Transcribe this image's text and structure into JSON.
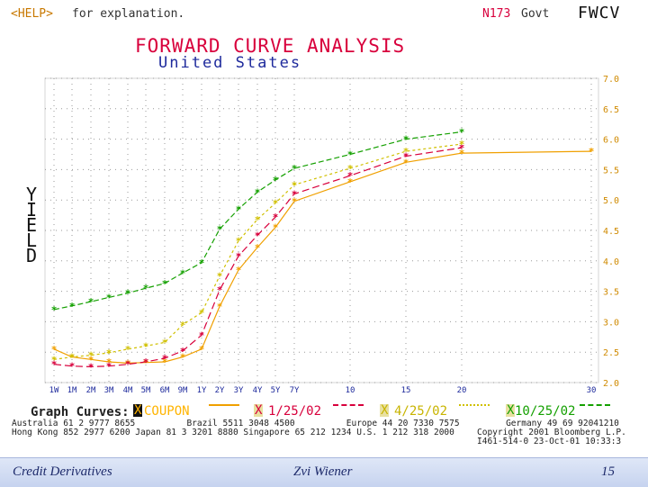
{
  "header": {
    "help_key": "<HELP>",
    "help_text": "for explanation.",
    "page_code": "N173",
    "section": "Govt",
    "function": "FWCV"
  },
  "title": "FORWARD CURVE ANALYSIS",
  "subtitle": "United States",
  "ylabel_letters": [
    "Y",
    "I",
    "E",
    "L",
    "D"
  ],
  "graph_curves_label": "Graph Curves:",
  "legend": [
    {
      "mark": "X",
      "label": "COUPON",
      "color": "#ffb400",
      "selected": true
    },
    {
      "mark": "X",
      "label": "1/25/02",
      "color": "#d8003c",
      "selected": false
    },
    {
      "mark": "X",
      "label": "4/25/02",
      "color": "#c8b400",
      "selected": false
    },
    {
      "mark": "X",
      "label": "10/25/02",
      "color": "#14a000",
      "selected": false
    }
  ],
  "contacts": {
    "row1": "Australia 61 2 9777 8655          Brazil 5511 3048 4500          Europe 44 20 7330 7575         Germany 49 69 92041210",
    "row2": "Hong Kong 852 2977 6200 Japan 81 3 3201 8880 Singapore 65 212 1234 U.S. 1 212 318 2000",
    "copyright": "Copyright 2001 Bloomberg L.P.",
    "stamp": "I461-514-0 23-Oct-01 10:33:3"
  },
  "footer": {
    "left": "Credit Derivatives",
    "center": "Zvi Wiener",
    "page": "15"
  },
  "chart_data": {
    "type": "line",
    "title": "FORWARD CURVE ANALYSIS",
    "subtitle": "United States",
    "ylabel": "YIELD",
    "xlabel": "",
    "ylim": [
      2.0,
      7.0
    ],
    "y_ticks": [
      "2.0",
      "2.5",
      "3.0",
      "3.5",
      "4.0",
      "4.5",
      "5.0",
      "5.5",
      "6.0",
      "6.5",
      "7.0"
    ],
    "x_ticks": [
      "1W",
      "1M",
      "2M",
      "3M",
      "4M",
      "5M",
      "6M",
      "9M",
      "1Y",
      "2Y",
      "3Y",
      "4Y",
      "5Y",
      "7Y",
      "10",
      "15",
      "20",
      "30"
    ],
    "grid": true,
    "legend_position": "bottom",
    "series": [
      {
        "name": "COUPON",
        "color": "#f0a000",
        "dash": "",
        "values": [
          2.55,
          2.42,
          2.38,
          2.34,
          2.32,
          2.33,
          2.34,
          2.42,
          2.55,
          3.25,
          3.85,
          4.22,
          4.55,
          4.98,
          5.3,
          5.62,
          5.77,
          5.8
        ]
      },
      {
        "name": "1/25/02",
        "color": "#d8003c",
        "dash": "8,4",
        "values": [
          2.3,
          2.27,
          2.26,
          2.27,
          2.3,
          2.34,
          2.4,
          2.52,
          2.78,
          3.52,
          4.08,
          4.42,
          4.72,
          5.1,
          5.4,
          5.72,
          5.86,
          null
        ]
      },
      {
        "name": "4/25/02",
        "color": "#d0c000",
        "dash": "3,3",
        "values": [
          2.38,
          2.42,
          2.45,
          2.49,
          2.55,
          2.6,
          2.66,
          2.95,
          3.15,
          3.75,
          4.33,
          4.68,
          4.95,
          5.25,
          5.52,
          5.8,
          5.92,
          null
        ]
      },
      {
        "name": "10/25/02",
        "color": "#14a000",
        "dash": "6,3",
        "values": [
          3.2,
          3.26,
          3.33,
          3.4,
          3.47,
          3.55,
          3.63,
          3.8,
          3.97,
          4.52,
          4.85,
          5.13,
          5.33,
          5.52,
          5.75,
          6.0,
          6.12,
          null
        ]
      }
    ]
  }
}
